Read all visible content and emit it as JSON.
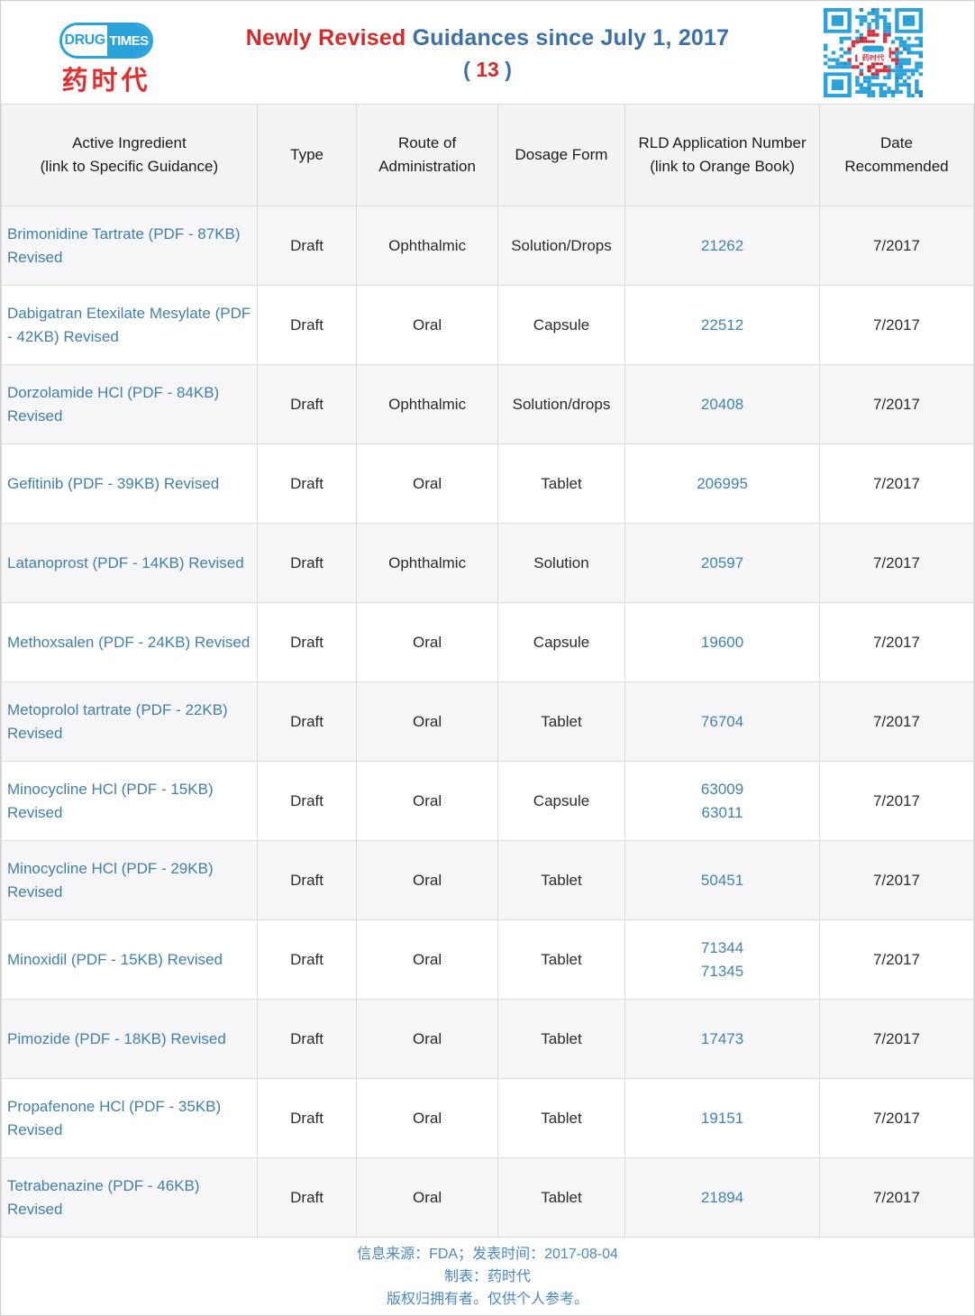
{
  "logo": {
    "drug": "DRUG",
    "times": "TIMES",
    "cn": "药时代"
  },
  "title": {
    "red_part": "Newly Revised",
    "blue_part": "Guidances since July 1, 2017",
    "paren_open": "(",
    "count": "13",
    "paren_close": ")"
  },
  "colors": {
    "brand_blue": "#2aa3da",
    "brand_red": "#e02f2f",
    "title_red": "#d42a2a",
    "title_blue": "#3b70a8",
    "link_blue": "#4080ad",
    "rld_link_blue": "#4183b2",
    "footer_blue": "#4a87c6",
    "row_alt_gray": "#f6f5f7",
    "border_gray": "#dcdbdd",
    "qr_red": "#d5333f"
  },
  "table": {
    "headers": [
      "Active Ingredient\n(link to Specific Guidance)",
      "Type",
      "Route of\nAdministration",
      "Dosage Form",
      "RLD Application Number\n(link to Orange Book)",
      "Date\nRecommended"
    ],
    "rows": [
      {
        "ingredient": "Brimonidine Tartrate (PDF - 87KB) Revised",
        "type": "Draft",
        "route": "Ophthalmic",
        "dosage": "Solution/Drops",
        "rld": [
          "21262"
        ],
        "date": "7/2017"
      },
      {
        "ingredient": "Dabigatran Etexilate Mesylate (PDF - 42KB) Revised",
        "type": "Draft",
        "route": "Oral",
        "dosage": "Capsule",
        "rld": [
          "22512"
        ],
        "date": "7/2017"
      },
      {
        "ingredient": "Dorzolamide HCl (PDF - 84KB) Revised",
        "type": "Draft",
        "route": "Ophthalmic",
        "dosage": "Solution/drops",
        "rld": [
          "20408"
        ],
        "date": "7/2017"
      },
      {
        "ingredient": "Gefitinib (PDF - 39KB) Revised",
        "type": "Draft",
        "route": "Oral",
        "dosage": "Tablet",
        "rld": [
          "206995"
        ],
        "date": "7/2017"
      },
      {
        "ingredient": "Latanoprost (PDF - 14KB) Revised",
        "type": "Draft",
        "route": "Ophthalmic",
        "dosage": "Solution",
        "rld": [
          "20597"
        ],
        "date": "7/2017"
      },
      {
        "ingredient": "Methoxsalen (PDF - 24KB) Revised",
        "type": "Draft",
        "route": "Oral",
        "dosage": "Capsule",
        "rld": [
          "19600"
        ],
        "date": "7/2017"
      },
      {
        "ingredient": "Metoprolol tartrate (PDF - 22KB) Revised",
        "type": "Draft",
        "route": "Oral",
        "dosage": "Tablet",
        "rld": [
          "76704"
        ],
        "date": "7/2017"
      },
      {
        "ingredient": "Minocycline HCl (PDF - 15KB) Revised",
        "type": "Draft",
        "route": "Oral",
        "dosage": "Capsule",
        "rld": [
          "63009",
          "63011"
        ],
        "date": "7/2017"
      },
      {
        "ingredient": "Minocycline HCl (PDF - 29KB) Revised",
        "type": "Draft",
        "route": "Oral",
        "dosage": "Tablet",
        "rld": [
          "50451"
        ],
        "date": "7/2017"
      },
      {
        "ingredient": "Minoxidil (PDF - 15KB) Revised",
        "type": "Draft",
        "route": "Oral",
        "dosage": "Tablet",
        "rld": [
          "71344",
          "71345"
        ],
        "date": "7/2017"
      },
      {
        "ingredient": "Pimozide (PDF - 18KB) Revised",
        "type": "Draft",
        "route": "Oral",
        "dosage": "Tablet",
        "rld": [
          "17473"
        ],
        "date": "7/2017"
      },
      {
        "ingredient": "Propafenone HCl (PDF - 35KB) Revised",
        "type": "Draft",
        "route": "Oral",
        "dosage": "Tablet",
        "rld": [
          "19151"
        ],
        "date": "7/2017"
      },
      {
        "ingredient": "Tetrabenazine (PDF - 46KB) Revised",
        "type": "Draft",
        "route": "Oral",
        "dosage": "Tablet",
        "rld": [
          "21894"
        ],
        "date": "7/2017"
      }
    ]
  },
  "footer": {
    "line1": "信息来源：FDA；发表时间：2017-08-04",
    "line2": "制表：药时代",
    "line3": "版权归拥有者。仅供个人参考。"
  }
}
